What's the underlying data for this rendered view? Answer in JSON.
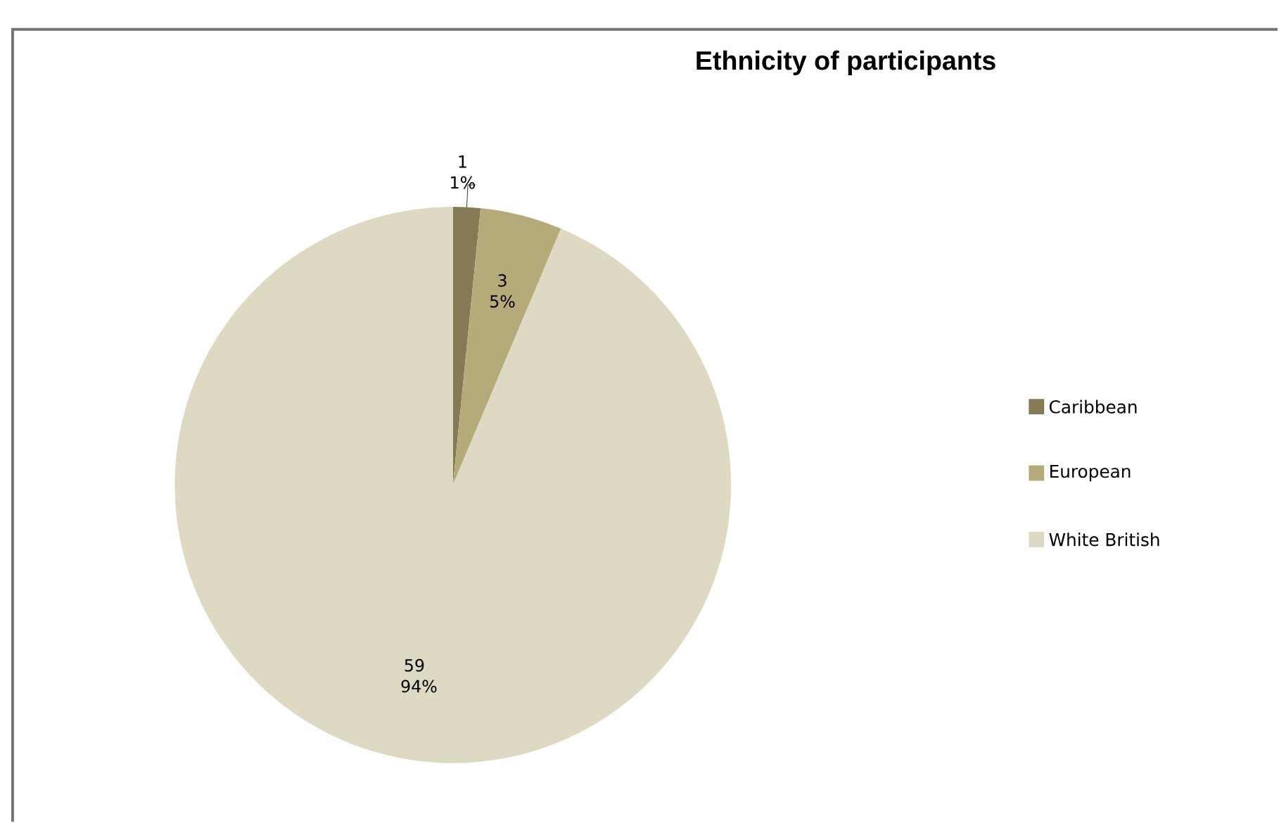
{
  "chart_data": {
    "type": "pie",
    "title": "Ethnicity of participants",
    "categories": [
      "Caribbean",
      "European",
      "White British"
    ],
    "values": [
      1,
      3,
      59
    ],
    "value_labels": [
      "1 1%",
      "3 5%",
      "59 94%"
    ],
    "colors": [
      "#847a55",
      "#b5aa7a",
      "#ddd9c3"
    ],
    "legend": "right"
  }
}
